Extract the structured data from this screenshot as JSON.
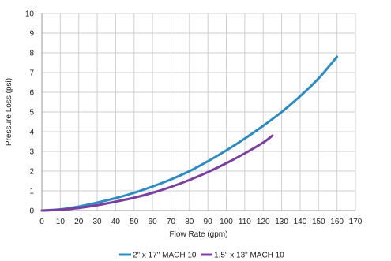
{
  "chart_data": {
    "type": "line",
    "xlabel": "Flow Rate (gpm)",
    "ylabel": "Pressure Loss (psi)",
    "xlim": [
      0,
      170
    ],
    "ylim": [
      0,
      10
    ],
    "x_ticks": [
      0,
      10,
      20,
      30,
      40,
      50,
      60,
      70,
      80,
      90,
      100,
      110,
      120,
      130,
      140,
      150,
      160,
      170
    ],
    "y_ticks": [
      0,
      1,
      2,
      3,
      4,
      5,
      6,
      7,
      8,
      9,
      10
    ],
    "grid": true,
    "legend_position": "bottom",
    "series": [
      {
        "name": "2\" x 17\" MACH 10",
        "color": "#2b8cc4",
        "points": [
          [
            0,
            0
          ],
          [
            10,
            0.06
          ],
          [
            20,
            0.2
          ],
          [
            30,
            0.4
          ],
          [
            40,
            0.63
          ],
          [
            50,
            0.9
          ],
          [
            60,
            1.22
          ],
          [
            70,
            1.58
          ],
          [
            80,
            2.0
          ],
          [
            90,
            2.5
          ],
          [
            100,
            3.05
          ],
          [
            110,
            3.65
          ],
          [
            120,
            4.3
          ],
          [
            130,
            5.0
          ],
          [
            140,
            5.8
          ],
          [
            150,
            6.7
          ],
          [
            160,
            7.8
          ]
        ]
      },
      {
        "name": "1.5\" x 13\" MACH 10",
        "color": "#7b3fa0",
        "points": [
          [
            0,
            0
          ],
          [
            10,
            0.04
          ],
          [
            20,
            0.13
          ],
          [
            30,
            0.27
          ],
          [
            40,
            0.45
          ],
          [
            50,
            0.65
          ],
          [
            60,
            0.9
          ],
          [
            70,
            1.2
          ],
          [
            80,
            1.55
          ],
          [
            90,
            1.95
          ],
          [
            100,
            2.4
          ],
          [
            110,
            2.9
          ],
          [
            120,
            3.45
          ],
          [
            125,
            3.8
          ]
        ]
      }
    ]
  }
}
